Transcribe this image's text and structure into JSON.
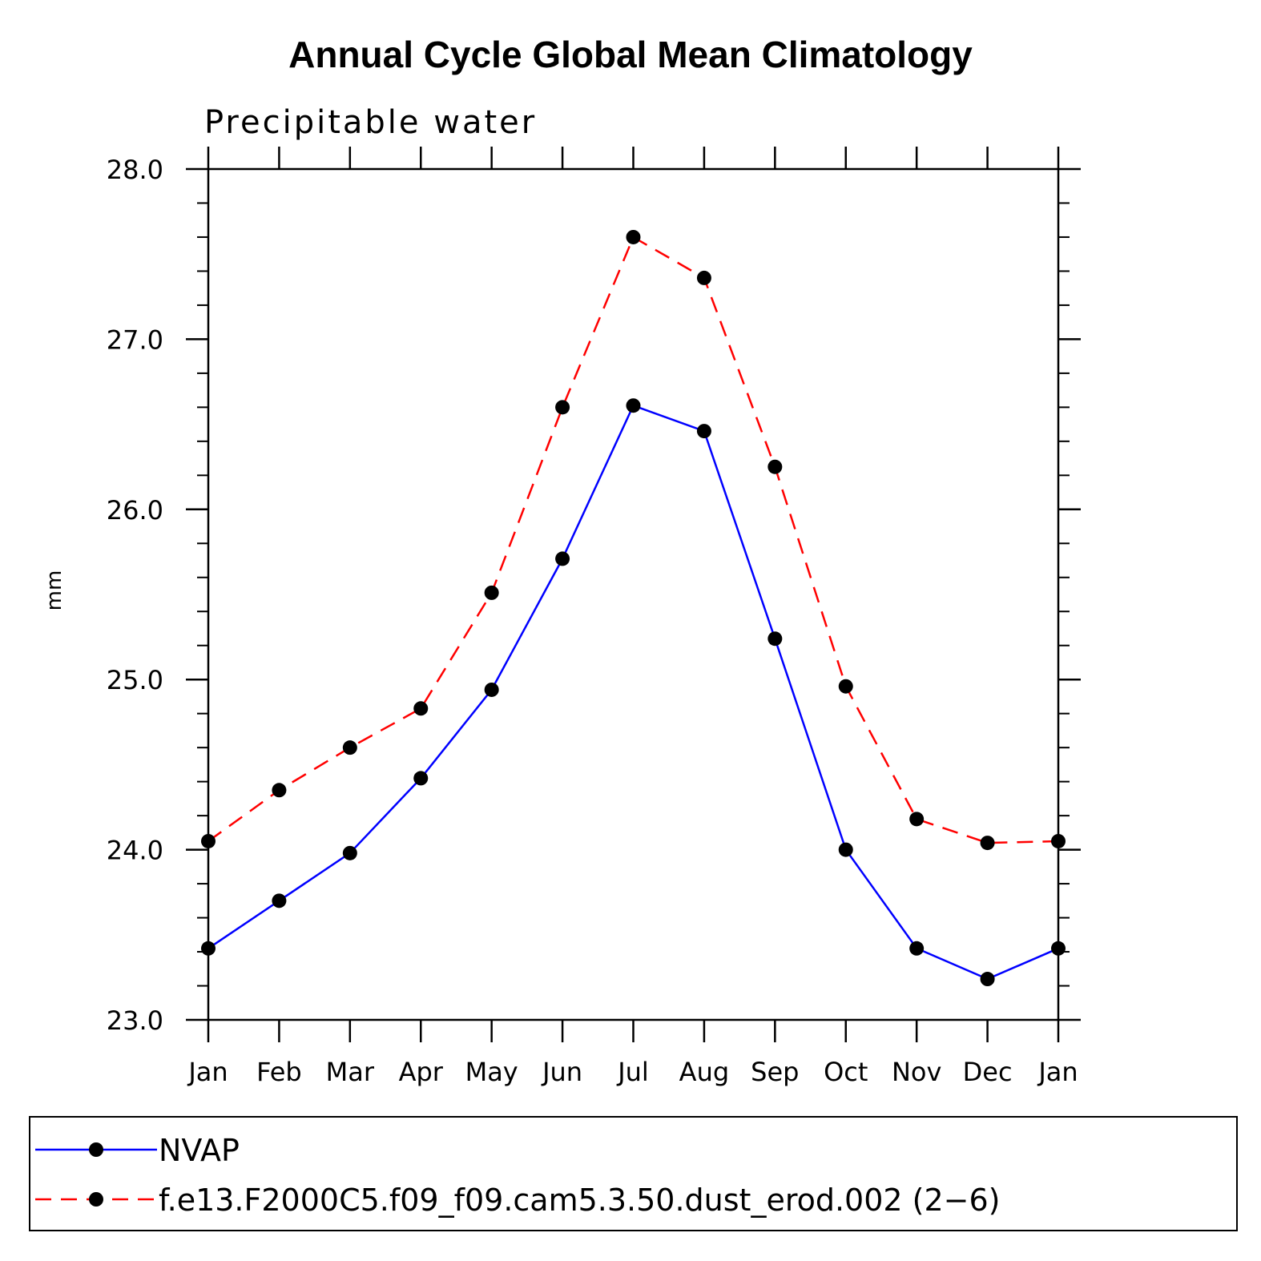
{
  "chart_data": {
    "type": "line",
    "title": "Annual Cycle Global Mean Climatology",
    "subtitle": "Precipitable water",
    "xlabel": "",
    "ylabel": "mm",
    "categories": [
      "Jan",
      "Feb",
      "Mar",
      "Apr",
      "May",
      "Jun",
      "Jul",
      "Aug",
      "Sep",
      "Oct",
      "Nov",
      "Dec",
      "Jan"
    ],
    "ylim": [
      23.0,
      28.0
    ],
    "y_ticks": [
      "23.0",
      "24.0",
      "25.0",
      "26.0",
      "27.0",
      "28.0"
    ],
    "y_minor_step": 0.2,
    "grid": false,
    "legend_position": "bottom",
    "series": [
      {
        "name": "NVAP",
        "color": "#0000ff",
        "line_style": "solid",
        "marker": "filled-circle",
        "values": [
          23.42,
          23.7,
          23.98,
          24.42,
          24.94,
          25.71,
          26.61,
          26.46,
          25.24,
          24.0,
          23.42,
          23.24,
          23.42
        ]
      },
      {
        "name": "f.e13.F2000C5.f09_f09.cam5.3.50.dust_erod.002 (2−6)",
        "color": "#ff0000",
        "line_style": "dashed",
        "marker": "filled-circle",
        "values": [
          24.05,
          24.35,
          24.6,
          24.83,
          25.51,
          26.6,
          27.6,
          27.36,
          26.25,
          24.96,
          24.18,
          24.04,
          24.05
        ]
      }
    ]
  }
}
